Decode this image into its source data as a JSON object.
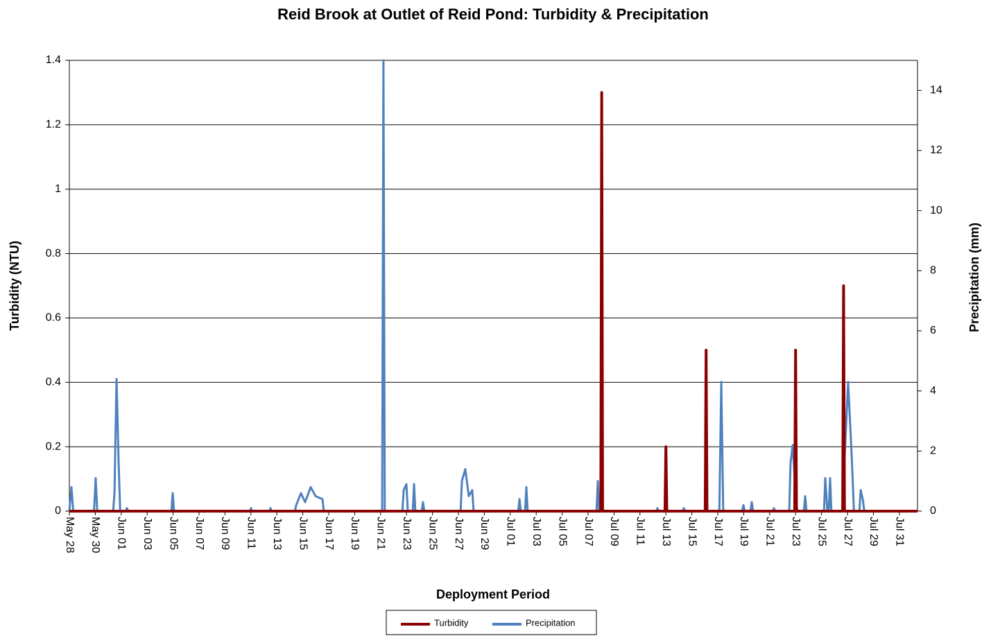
{
  "chart_data": {
    "type": "line",
    "title": "Reid Brook at Outlet of Reid Pond: Turbidity & Precipitation",
    "x_label": "Deployment Period",
    "y_label": "Turbidity (NTU)",
    "y2_label": "Precipitation (mm)",
    "xlim": [
      0,
      65.4
    ],
    "xticks": [
      {
        "value": 0,
        "label": "May 28"
      },
      {
        "value": 2,
        "label": "May 30"
      },
      {
        "value": 4,
        "label": "Jun 01"
      },
      {
        "value": 6,
        "label": "Jun 03"
      },
      {
        "value": 8,
        "label": "Jun 05"
      },
      {
        "value": 10,
        "label": "Jun 07"
      },
      {
        "value": 12,
        "label": "Jun 09"
      },
      {
        "value": 14,
        "label": "Jun 11"
      },
      {
        "value": 16,
        "label": "Jun 13"
      },
      {
        "value": 18,
        "label": "Jun 15"
      },
      {
        "value": 20,
        "label": "Jun 17"
      },
      {
        "value": 22,
        "label": "Jun 19"
      },
      {
        "value": 24,
        "label": "Jun 21"
      },
      {
        "value": 26,
        "label": "Jun 23"
      },
      {
        "value": 28,
        "label": "Jun 25"
      },
      {
        "value": 30,
        "label": "Jun 27"
      },
      {
        "value": 32,
        "label": "Jun 29"
      },
      {
        "value": 34,
        "label": "Jul 01"
      },
      {
        "value": 36,
        "label": "Jul 03"
      },
      {
        "value": 38,
        "label": "Jul 05"
      },
      {
        "value": 40,
        "label": "Jul 07"
      },
      {
        "value": 42,
        "label": "Jul 09"
      },
      {
        "value": 44,
        "label": "Jul 11"
      },
      {
        "value": 46,
        "label": "Jul 13"
      },
      {
        "value": 48,
        "label": "Jul 15"
      },
      {
        "value": 50,
        "label": "Jul 17"
      },
      {
        "value": 52,
        "label": "Jul 19"
      },
      {
        "value": 54,
        "label": "Jul 21"
      },
      {
        "value": 56,
        "label": "Jul 23"
      },
      {
        "value": 58,
        "label": "Jul 25"
      },
      {
        "value": 60,
        "label": "Jul 27"
      },
      {
        "value": 62,
        "label": "Jul 29"
      },
      {
        "value": 64,
        "label": "Jul 31"
      }
    ],
    "ylim": [
      0,
      1.4
    ],
    "yticks": [
      0,
      0.2,
      0.4,
      0.6,
      0.8,
      1,
      1.2,
      1.4
    ],
    "y2lim": [
      0,
      15
    ],
    "y2ticks": [
      0,
      2,
      4,
      6,
      8,
      10,
      12,
      14
    ],
    "grid": true,
    "legend": "bottom",
    "series": [
      {
        "name": "Turbidity",
        "color": "#8b0000",
        "x": [
          0,
          40.98,
          41.05,
          41.12,
          45.93,
          46.0,
          46.07,
          49.03,
          49.1,
          49.17,
          55.93,
          56.0,
          56.07,
          59.63,
          59.7,
          59.77,
          65.4
        ],
        "values": [
          0,
          0,
          1.3,
          0,
          0,
          0.2,
          0,
          0,
          0.5,
          0,
          0,
          0.5,
          0,
          0,
          0.7,
          0,
          0
        ]
      },
      {
        "name": "Precipitation",
        "color": "#4f81bd",
        "axis": "y2",
        "x": [
          0,
          0.16,
          0.3,
          1.9,
          2.03,
          2.15,
          3.38,
          3.48,
          3.64,
          3.8,
          3.92,
          4.35,
          4.44,
          4.53,
          7.87,
          7.97,
          8.07,
          13.92,
          14.01,
          14.1,
          15.42,
          15.51,
          15.6,
          17.4,
          17.49,
          17.86,
          18.18,
          18.61,
          18.98,
          19.52,
          19.62,
          24.12,
          24.22,
          24.32,
          25.68,
          25.78,
          25.99,
          26.1,
          26.48,
          26.58,
          26.68,
          27.17,
          27.27,
          27.37,
          30.17,
          30.27,
          30.53,
          30.8,
          31.07,
          31.17,
          34.61,
          34.71,
          34.81,
          35.14,
          35.24,
          35.34,
          40.65,
          40.75,
          40.85,
          45.26,
          45.35,
          45.44,
          47.29,
          47.38,
          47.47,
          50.12,
          50.27,
          50.42,
          51.88,
          51.98,
          52.08,
          52.52,
          52.62,
          52.72,
          54.24,
          54.33,
          54.42,
          55.51,
          55.61,
          55.78,
          56.04,
          56.14,
          56.64,
          56.74,
          56.84,
          58.19,
          58.29,
          58.45,
          58.56,
          58.66,
          58.76,
          59.63,
          59.73,
          60.05,
          60.32,
          60.5,
          60.92,
          61.02,
          61.18,
          61.3,
          65.4
        ],
        "values": [
          0,
          0.8,
          0,
          0,
          1.1,
          0,
          0,
          0.6,
          4.4,
          1.6,
          0,
          0,
          0.1,
          0,
          0,
          0.6,
          0,
          0,
          0.1,
          0,
          0,
          0.1,
          0,
          0,
          0.2,
          0.6,
          0.3,
          0.8,
          0.5,
          0.4,
          0,
          0,
          15,
          0,
          0,
          0.7,
          0.9,
          0,
          0,
          0.9,
          0,
          0,
          0.3,
          0,
          0,
          1.0,
          1.4,
          0.5,
          0.7,
          0,
          0,
          0.4,
          0,
          0,
          0.8,
          0,
          0,
          1.0,
          0,
          0,
          0.1,
          0,
          0,
          0.1,
          0,
          0,
          4.3,
          0,
          0,
          0.2,
          0,
          0,
          0.3,
          0,
          0,
          0.1,
          0,
          0,
          1.6,
          2.2,
          0.3,
          0,
          0,
          0.5,
          0,
          0,
          1.1,
          0,
          0,
          1.1,
          0,
          0,
          1.3,
          4.3,
          1.9,
          0,
          0,
          0.7,
          0.4,
          0,
          0
        ]
      }
    ]
  }
}
